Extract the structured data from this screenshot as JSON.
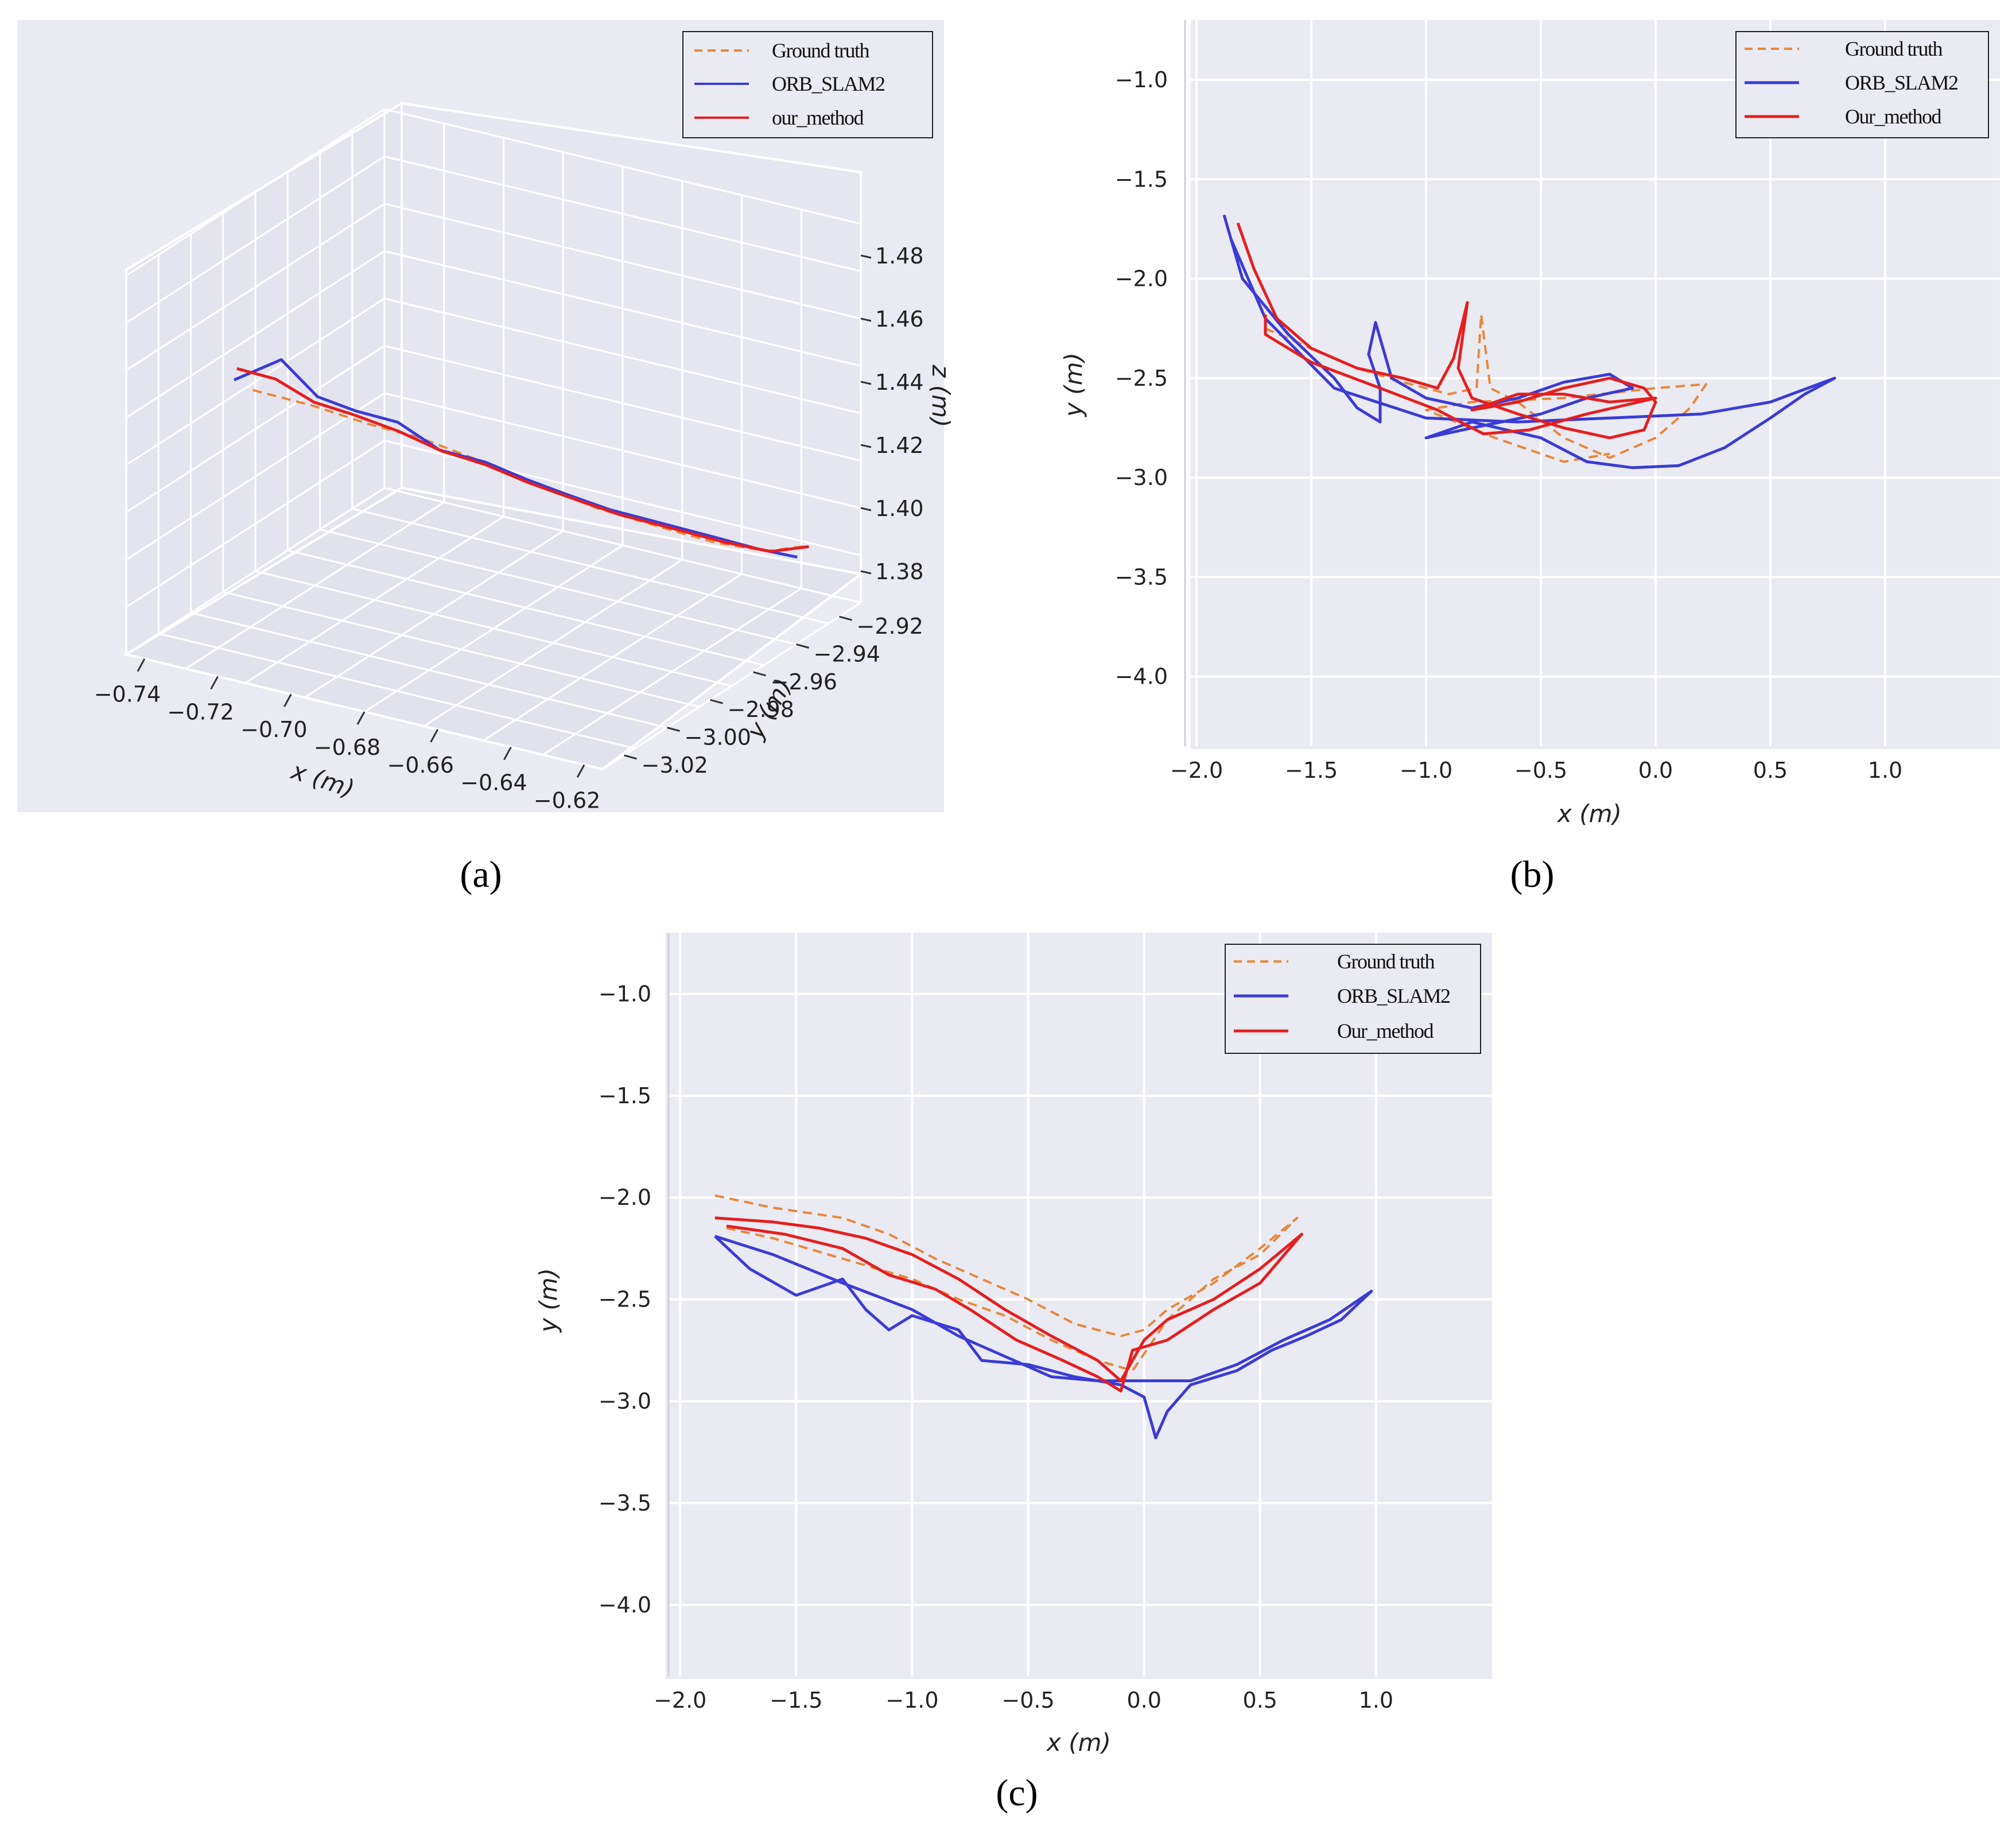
{
  "chart_data": [
    {
      "id": "a",
      "type": "line",
      "projection": "3d",
      "caption": "(a)",
      "legend": [
        "Ground truth",
        "ORB_SLAM2",
        "our_method"
      ],
      "xlabel": "x (m)",
      "ylabel": "y (m)",
      "zlabel": "z (m)",
      "xticks": [
        "−0.74",
        "−0.72",
        "−0.70",
        "−0.68",
        "−0.66",
        "−0.64",
        "−0.62"
      ],
      "yticks": [
        "−2.92",
        "−2.94",
        "−2.96",
        "−2.98",
        "−3.00",
        "−3.02"
      ],
      "zticks": [
        "1.48",
        "1.46",
        "1.44",
        "1.42",
        "1.40",
        "1.38"
      ],
      "xlim": [
        -0.745,
        -0.615
      ],
      "ylim": [
        -3.03,
        -2.91
      ],
      "zlim": [
        1.37,
        1.49
      ],
      "series": [
        {
          "name": "Ground truth",
          "color": "#e8873a",
          "dash": true,
          "points": [
            [
              -0.741,
              -2.978,
              1.432
            ],
            [
              -0.728,
              -2.972,
              1.428
            ],
            [
              -0.715,
              -2.968,
              1.424
            ],
            [
              -0.705,
              -2.962,
              1.42
            ],
            [
              -0.694,
              -2.956,
              1.414
            ],
            [
              -0.682,
              -2.948,
              1.406
            ],
            [
              -0.67,
              -2.94,
              1.398
            ],
            [
              -0.658,
              -2.932,
              1.392
            ],
            [
              -0.646,
              -2.925,
              1.387
            ],
            [
              -0.636,
              -2.918,
              1.384
            ],
            [
              -0.628,
              -2.914,
              1.386
            ]
          ]
        },
        {
          "name": "ORB_SLAM2",
          "color": "#3b3bd6",
          "dash": false,
          "points": [
            [
              -0.742,
              -2.985,
              1.438
            ],
            [
              -0.735,
              -2.975,
              1.442
            ],
            [
              -0.728,
              -2.97,
              1.43
            ],
            [
              -0.72,
              -2.966,
              1.426
            ],
            [
              -0.712,
              -2.96,
              1.422
            ],
            [
              -0.703,
              -2.956,
              1.414
            ],
            [
              -0.694,
              -2.95,
              1.41
            ],
            [
              -0.686,
              -2.944,
              1.404
            ],
            [
              -0.678,
              -2.94,
              1.4
            ],
            [
              -0.668,
              -2.936,
              1.396
            ],
            [
              -0.656,
              -2.93,
              1.392
            ],
            [
              -0.646,
              -2.924,
              1.388
            ],
            [
              -0.638,
              -2.918,
              1.384
            ],
            [
              -0.63,
              -2.914,
              1.382
            ]
          ]
        },
        {
          "name": "our_method",
          "color": "#e61e1e",
          "dash": false,
          "points": [
            [
              -0.743,
              -2.982,
              1.44
            ],
            [
              -0.736,
              -2.976,
              1.436
            ],
            [
              -0.729,
              -2.97,
              1.428
            ],
            [
              -0.721,
              -2.965,
              1.424
            ],
            [
              -0.713,
              -2.958,
              1.418
            ],
            [
              -0.704,
              -2.953,
              1.412
            ],
            [
              -0.695,
              -2.948,
              1.408
            ],
            [
              -0.687,
              -2.942,
              1.402
            ],
            [
              -0.678,
              -2.938,
              1.398
            ],
            [
              -0.667,
              -2.934,
              1.394
            ],
            [
              -0.655,
              -2.928,
              1.39
            ],
            [
              -0.645,
              -2.922,
              1.386
            ],
            [
              -0.636,
              -2.916,
              1.383
            ],
            [
              -0.628,
              -2.912,
              1.385
            ]
          ]
        }
      ]
    },
    {
      "id": "b",
      "type": "line",
      "caption": "(b)",
      "legend": [
        "Ground truth",
        "ORB_SLAM2",
        "Our_method"
      ],
      "xlabel": "x (m)",
      "ylabel": "y (m)",
      "xlim": [
        -2.05,
        1.5
      ],
      "ylim": [
        -4.35,
        -0.7
      ],
      "xticks": [
        -2.0,
        -1.5,
        -1.0,
        -0.5,
        0.0,
        0.5,
        1.0
      ],
      "xtick_labels": [
        "−2.0",
        "−1.5",
        "−1.0",
        "−0.5",
        "0.0",
        "0.5",
        "1.0"
      ],
      "yticks": [
        -1.0,
        -1.5,
        -2.0,
        -2.5,
        -3.0,
        -3.5,
        -4.0
      ],
      "ytick_labels": [
        "−1.0",
        "−1.5",
        "−2.0",
        "−2.5",
        "−3.0",
        "−3.5",
        "−4.0"
      ],
      "series": [
        {
          "name": "Ground truth",
          "color": "#e8873a",
          "dash": true,
          "points": [
            [
              -1.7,
              -2.25
            ],
            [
              -1.5,
              -2.35
            ],
            [
              -1.3,
              -2.45
            ],
            [
              -1.1,
              -2.52
            ],
            [
              -0.9,
              -2.58
            ],
            [
              -0.78,
              -2.55
            ],
            [
              -0.76,
              -2.18
            ],
            [
              -0.72,
              -2.55
            ],
            [
              -0.6,
              -2.62
            ],
            [
              -0.4,
              -2.8
            ],
            [
              -0.2,
              -2.9
            ],
            [
              0.0,
              -2.8
            ],
            [
              0.15,
              -2.65
            ],
            [
              0.22,
              -2.53
            ],
            [
              0.0,
              -2.55
            ],
            [
              -0.4,
              -2.6
            ],
            [
              -0.8,
              -2.62
            ],
            [
              -1.0,
              -2.66
            ],
            [
              -0.7,
              -2.8
            ],
            [
              -0.4,
              -2.92
            ],
            [
              -0.2,
              -2.88
            ]
          ]
        },
        {
          "name": "ORB_SLAM2",
          "color": "#3b3bd6",
          "dash": false,
          "points": [
            [
              -1.88,
              -1.68
            ],
            [
              -1.8,
              -2.0
            ],
            [
              -1.6,
              -2.28
            ],
            [
              -1.4,
              -2.5
            ],
            [
              -1.3,
              -2.65
            ],
            [
              -1.2,
              -2.72
            ],
            [
              -1.2,
              -2.55
            ],
            [
              -1.25,
              -2.38
            ],
            [
              -1.22,
              -2.22
            ],
            [
              -1.15,
              -2.5
            ],
            [
              -1.0,
              -2.6
            ],
            [
              -0.8,
              -2.65
            ],
            [
              -0.6,
              -2.6
            ],
            [
              -0.4,
              -2.52
            ],
            [
              -0.2,
              -2.48
            ],
            [
              -0.1,
              -2.55
            ],
            [
              -0.3,
              -2.6
            ],
            [
              -0.5,
              -2.68
            ],
            [
              -0.8,
              -2.75
            ],
            [
              -1.0,
              -2.8
            ],
            [
              -0.8,
              -2.72
            ],
            [
              -0.5,
              -2.8
            ],
            [
              -0.3,
              -2.92
            ],
            [
              -0.1,
              -2.95
            ],
            [
              0.1,
              -2.94
            ],
            [
              0.3,
              -2.85
            ],
            [
              0.5,
              -2.7
            ],
            [
              0.65,
              -2.58
            ],
            [
              0.78,
              -2.5
            ],
            [
              0.5,
              -2.62
            ],
            [
              0.2,
              -2.68
            ],
            [
              -0.2,
              -2.7
            ],
            [
              -0.6,
              -2.72
            ],
            [
              -1.0,
              -2.7
            ],
            [
              -1.4,
              -2.55
            ],
            [
              -1.7,
              -2.2
            ],
            [
              -1.85,
              -1.8
            ]
          ]
        },
        {
          "name": "Our_method",
          "color": "#e61e1e",
          "dash": false,
          "points": [
            [
              -1.82,
              -1.72
            ],
            [
              -1.75,
              -1.95
            ],
            [
              -1.65,
              -2.2
            ],
            [
              -1.5,
              -2.35
            ],
            [
              -1.3,
              -2.45
            ],
            [
              -1.1,
              -2.5
            ],
            [
              -0.95,
              -2.55
            ],
            [
              -0.88,
              -2.4
            ],
            [
              -0.82,
              -2.12
            ],
            [
              -0.86,
              -2.45
            ],
            [
              -0.8,
              -2.6
            ],
            [
              -0.6,
              -2.68
            ],
            [
              -0.4,
              -2.75
            ],
            [
              -0.2,
              -2.8
            ],
            [
              -0.05,
              -2.76
            ],
            [
              0.0,
              -2.62
            ],
            [
              -0.05,
              -2.55
            ],
            [
              -0.2,
              -2.5
            ],
            [
              -0.4,
              -2.55
            ],
            [
              -0.6,
              -2.62
            ],
            [
              -0.8,
              -2.66
            ],
            [
              -0.6,
              -2.58
            ],
            [
              -0.4,
              -2.58
            ],
            [
              -0.2,
              -2.62
            ],
            [
              0.0,
              -2.6
            ],
            [
              -0.3,
              -2.68
            ],
            [
              -0.55,
              -2.76
            ],
            [
              -0.75,
              -2.78
            ],
            [
              -0.95,
              -2.66
            ],
            [
              -1.2,
              -2.55
            ],
            [
              -1.5,
              -2.42
            ],
            [
              -1.7,
              -2.28
            ],
            [
              -1.7,
              -2.18
            ]
          ]
        }
      ]
    },
    {
      "id": "c",
      "type": "line",
      "caption": "(c)",
      "legend": [
        "Ground truth",
        "ORB_SLAM2",
        "Our_method"
      ],
      "xlabel": "x (m)",
      "ylabel": "y (m)",
      "xlim": [
        -2.05,
        1.5
      ],
      "ylim": [
        -4.35,
        -0.7
      ],
      "xticks": [
        -2.0,
        -1.5,
        -1.0,
        -0.5,
        0.0,
        0.5,
        1.0
      ],
      "xtick_labels": [
        "−2.0",
        "−1.5",
        "−1.0",
        "−0.5",
        "0.0",
        "0.5",
        "1.0"
      ],
      "yticks": [
        -1.0,
        -1.5,
        -2.0,
        -2.5,
        -3.0,
        -3.5,
        -4.0
      ],
      "ytick_labels": [
        "−1.0",
        "−1.5",
        "−2.0",
        "−2.5",
        "−3.0",
        "−3.5",
        "−4.0"
      ],
      "series": [
        {
          "name": "Ground truth",
          "color": "#e8873a",
          "dash": true,
          "points": [
            [
              -1.85,
              -1.99
            ],
            [
              -1.6,
              -2.05
            ],
            [
              -1.3,
              -2.1
            ],
            [
              -1.1,
              -2.18
            ],
            [
              -0.9,
              -2.3
            ],
            [
              -0.7,
              -2.4
            ],
            [
              -0.5,
              -2.5
            ],
            [
              -0.3,
              -2.62
            ],
            [
              -0.1,
              -2.68
            ],
            [
              0.0,
              -2.65
            ],
            [
              0.1,
              -2.55
            ],
            [
              0.3,
              -2.42
            ],
            [
              0.5,
              -2.25
            ],
            [
              0.66,
              -2.1
            ],
            [
              0.5,
              -2.28
            ],
            [
              0.3,
              -2.4
            ],
            [
              0.1,
              -2.6
            ],
            [
              -0.05,
              -2.85
            ],
            [
              -0.2,
              -2.8
            ],
            [
              -0.4,
              -2.7
            ],
            [
              -0.6,
              -2.58
            ],
            [
              -0.8,
              -2.5
            ],
            [
              -1.0,
              -2.4
            ],
            [
              -1.3,
              -2.3
            ],
            [
              -1.6,
              -2.2
            ],
            [
              -1.8,
              -2.15
            ]
          ]
        },
        {
          "name": "ORB_SLAM2",
          "color": "#3b3bd6",
          "dash": false,
          "points": [
            [
              -1.85,
              -2.19
            ],
            [
              -1.7,
              -2.35
            ],
            [
              -1.5,
              -2.48
            ],
            [
              -1.3,
              -2.4
            ],
            [
              -1.2,
              -2.55
            ],
            [
              -1.1,
              -2.65
            ],
            [
              -1.0,
              -2.58
            ],
            [
              -0.8,
              -2.65
            ],
            [
              -0.7,
              -2.8
            ],
            [
              -0.5,
              -2.82
            ],
            [
              -0.3,
              -2.88
            ],
            [
              -0.1,
              -2.92
            ],
            [
              0.0,
              -2.98
            ],
            [
              0.05,
              -3.18
            ],
            [
              0.1,
              -3.05
            ],
            [
              0.2,
              -2.92
            ],
            [
              0.4,
              -2.85
            ],
            [
              0.55,
              -2.75
            ],
            [
              0.7,
              -2.68
            ],
            [
              0.85,
              -2.6
            ],
            [
              0.98,
              -2.46
            ],
            [
              0.8,
              -2.6
            ],
            [
              0.6,
              -2.7
            ],
            [
              0.4,
              -2.82
            ],
            [
              0.2,
              -2.9
            ],
            [
              0.0,
              -2.9
            ],
            [
              -0.2,
              -2.9
            ],
            [
              -0.4,
              -2.88
            ],
            [
              -0.6,
              -2.78
            ],
            [
              -0.8,
              -2.68
            ],
            [
              -1.0,
              -2.55
            ],
            [
              -1.3,
              -2.42
            ],
            [
              -1.6,
              -2.28
            ],
            [
              -1.85,
              -2.19
            ]
          ]
        },
        {
          "name": "Our_method",
          "color": "#e61e1e",
          "dash": false,
          "points": [
            [
              -1.85,
              -2.1
            ],
            [
              -1.6,
              -2.12
            ],
            [
              -1.4,
              -2.15
            ],
            [
              -1.2,
              -2.2
            ],
            [
              -1.0,
              -2.28
            ],
            [
              -0.8,
              -2.4
            ],
            [
              -0.6,
              -2.55
            ],
            [
              -0.4,
              -2.68
            ],
            [
              -0.2,
              -2.8
            ],
            [
              -0.1,
              -2.9
            ],
            [
              0.0,
              -2.7
            ],
            [
              0.1,
              -2.6
            ],
            [
              0.3,
              -2.5
            ],
            [
              0.5,
              -2.35
            ],
            [
              0.68,
              -2.18
            ],
            [
              0.5,
              -2.42
            ],
            [
              0.3,
              -2.55
            ],
            [
              0.1,
              -2.7
            ],
            [
              -0.05,
              -2.75
            ],
            [
              -0.1,
              -2.95
            ],
            [
              -0.2,
              -2.88
            ],
            [
              -0.35,
              -2.8
            ],
            [
              -0.55,
              -2.7
            ],
            [
              -0.75,
              -2.55
            ],
            [
              -0.9,
              -2.45
            ],
            [
              -1.1,
              -2.38
            ],
            [
              -1.3,
              -2.25
            ],
            [
              -1.55,
              -2.18
            ],
            [
              -1.8,
              -2.14
            ]
          ]
        }
      ]
    }
  ]
}
